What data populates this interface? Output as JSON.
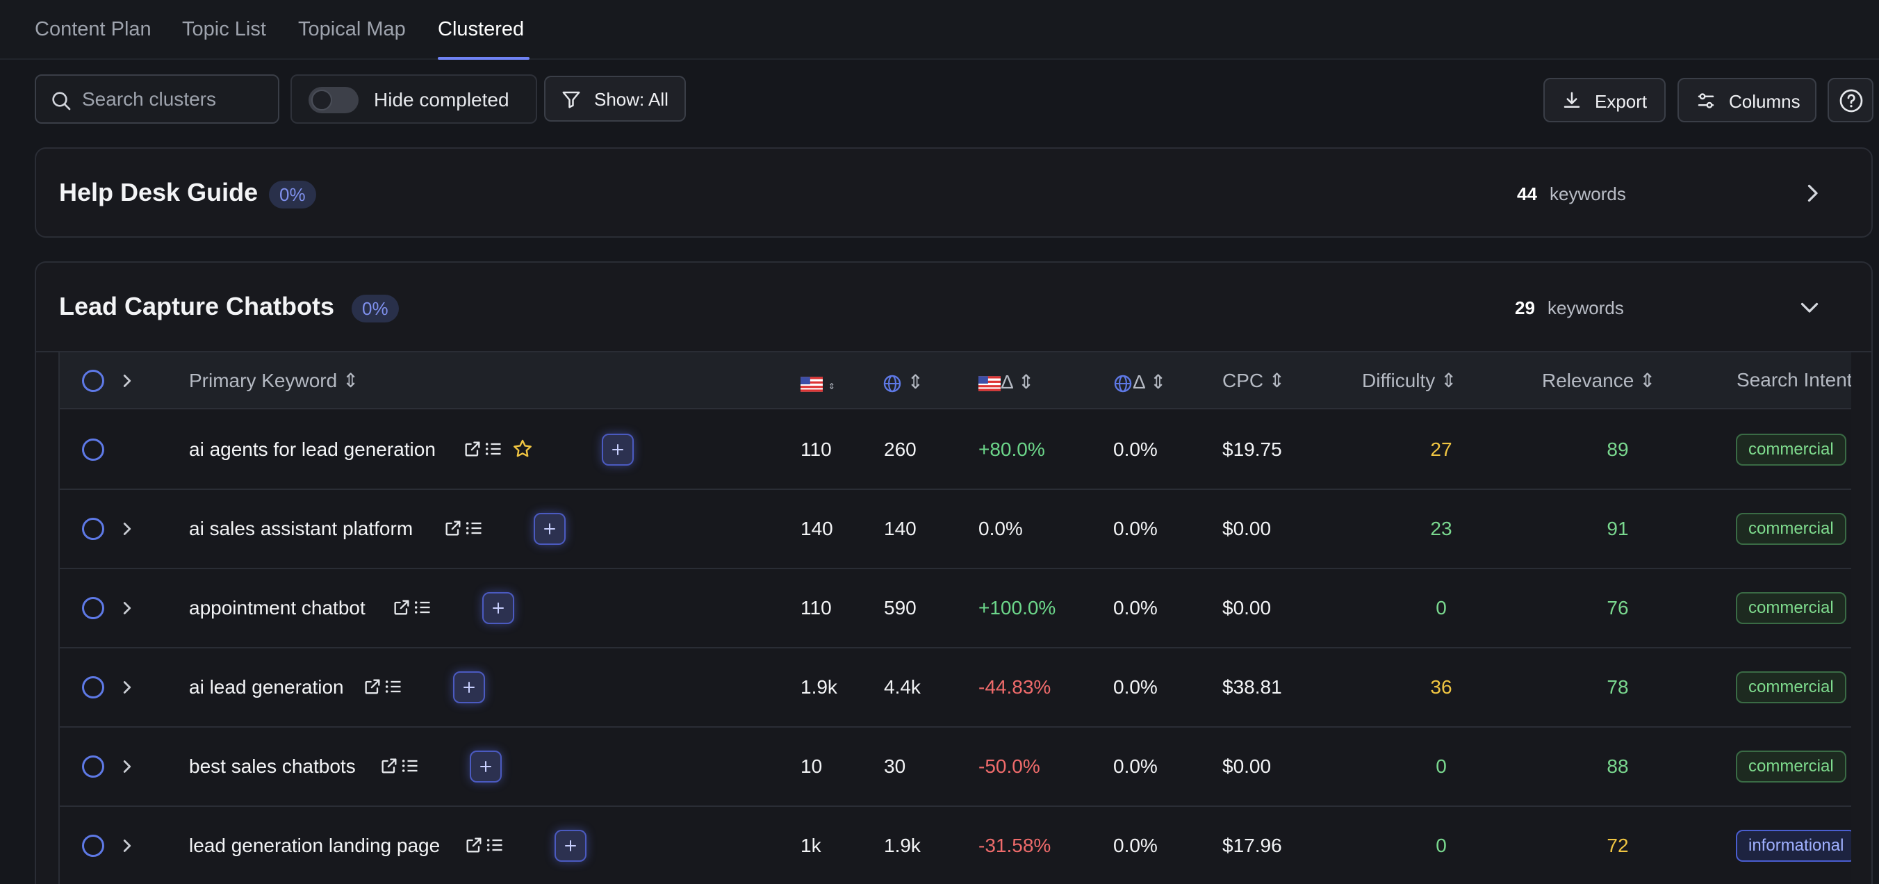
{
  "tabs": [
    {
      "label": "Content Plan"
    },
    {
      "label": "Topic List"
    },
    {
      "label": "Topical Map"
    },
    {
      "label": "Clustered",
      "active": true
    }
  ],
  "toolbar": {
    "search_placeholder": "Search clusters",
    "hide_completed_label": "Hide completed",
    "hide_completed_on": false,
    "show_label": "Show: All",
    "export_label": "Export",
    "columns_label": "Columns"
  },
  "clusters": [
    {
      "title": "Help Desk Guide",
      "progress": "0%",
      "keyword_count": "44",
      "keyword_word": "keywords",
      "expanded": false
    },
    {
      "title": "Lead Capture Chatbots",
      "progress": "0%",
      "keyword_count": "29",
      "keyword_word": "keywords",
      "expanded": true
    }
  ],
  "table": {
    "headers": {
      "primary_keyword": "Primary Keyword",
      "us_delta": "Δ",
      "global_delta": "Δ",
      "cpc": "CPC",
      "difficulty": "Difficulty",
      "relevance": "Relevance",
      "search_intent": "Search Intent"
    },
    "rows": [
      {
        "keyword": "ai agents for lead generation",
        "starred": true,
        "has_children": false,
        "us": "110",
        "global": "260",
        "us_delta": "+80.0%",
        "global_delta": "0.0%",
        "cpc": "$19.75",
        "difficulty": "27",
        "relevance": "89",
        "intent": "commercial"
      },
      {
        "keyword": "ai sales assistant platform",
        "starred": false,
        "has_children": true,
        "us": "140",
        "global": "140",
        "us_delta": "0.0%",
        "global_delta": "0.0%",
        "cpc": "$0.00",
        "difficulty": "23",
        "relevance": "91",
        "intent": "commercial"
      },
      {
        "keyword": "appointment chatbot",
        "starred": false,
        "has_children": true,
        "us": "110",
        "global": "590",
        "us_delta": "+100.0%",
        "global_delta": "0.0%",
        "cpc": "$0.00",
        "difficulty": "0",
        "relevance": "76",
        "intent": "commercial"
      },
      {
        "keyword": "ai lead generation",
        "starred": false,
        "has_children": true,
        "us": "1.9k",
        "global": "4.4k",
        "us_delta": "-44.83%",
        "global_delta": "0.0%",
        "cpc": "$38.81",
        "difficulty": "36",
        "relevance": "78",
        "intent": "commercial"
      },
      {
        "keyword": "best sales chatbots",
        "starred": false,
        "has_children": true,
        "us": "10",
        "global": "30",
        "us_delta": "-50.0%",
        "global_delta": "0.0%",
        "cpc": "$0.00",
        "difficulty": "0",
        "relevance": "88",
        "intent": "commercial"
      },
      {
        "keyword": "lead generation landing page",
        "starred": false,
        "has_children": true,
        "us": "1k",
        "global": "1.9k",
        "us_delta": "-31.58%",
        "global_delta": "0.0%",
        "cpc": "$17.96",
        "difficulty": "0",
        "relevance": "72",
        "intent": "informational"
      }
    ]
  },
  "colors": {
    "accent": "#6f82f4",
    "positive": "#6cd68a",
    "negative": "#ef6b6b",
    "difficulty_medium": "#f0c542",
    "difficulty_low": "#7ad88f"
  },
  "icons": [
    "search-icon",
    "filter-icon",
    "download-icon",
    "sliders-icon",
    "help-icon",
    "chevron-right-icon",
    "chevron-down-icon",
    "external-link-icon",
    "list-icon",
    "star-icon",
    "plus-icon",
    "us-flag-icon",
    "globe-icon",
    "sort-icon"
  ]
}
